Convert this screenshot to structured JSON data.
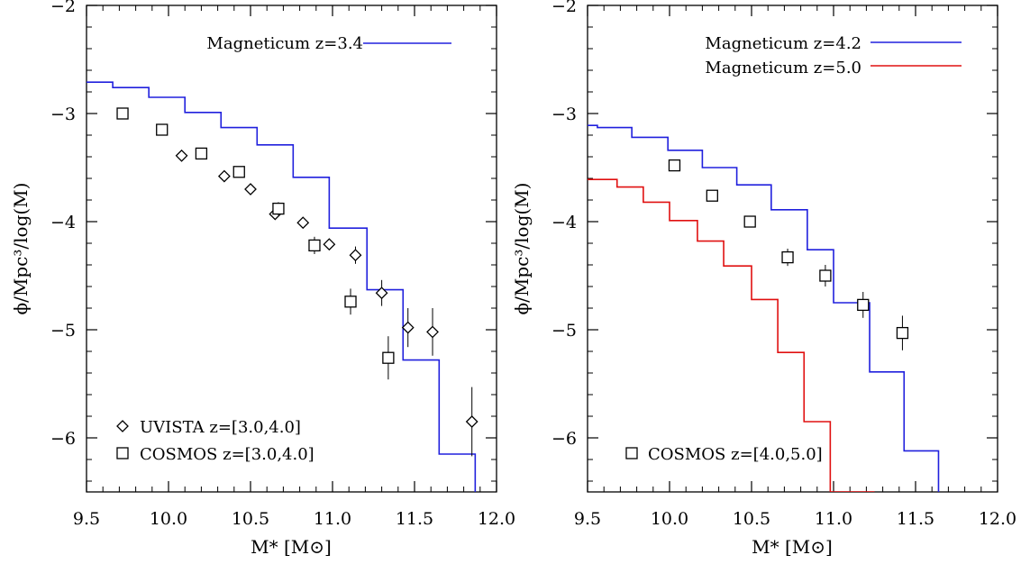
{
  "chart_data": [
    {
      "type": "line",
      "panel": "left",
      "xlabel": "M* [M⊙]",
      "ylabel": "ϕ/Mpc³/log(M)",
      "xlim": [
        9.5,
        12.0
      ],
      "ylim": [
        -6.5,
        -2.0
      ],
      "xticks": [
        "9.5",
        "10.0",
        "10.5",
        "11.0",
        "11.5",
        "12.0"
      ],
      "yticks": [
        "−2",
        "−3",
        "−4",
        "−5",
        "−6"
      ],
      "series": [
        {
          "name": "Magneticum z=3.4",
          "kind": "step",
          "color": "#2020dd",
          "x": [
            9.5,
            9.66,
            9.88,
            10.1,
            10.32,
            10.54,
            10.76,
            10.98,
            11.21,
            11.43,
            11.65,
            11.87
          ],
          "y": [
            -2.71,
            -2.76,
            -2.85,
            -2.99,
            -3.13,
            -3.29,
            -3.59,
            -4.06,
            -4.63,
            -5.28,
            -6.15,
            -6.5
          ]
        },
        {
          "name": "UVISTA z=[3.0,4.0]",
          "kind": "diamond",
          "color": "#000000",
          "x": [
            10.08,
            10.34,
            10.5,
            10.65,
            10.82,
            10.98,
            11.14,
            11.3,
            11.46,
            11.61,
            11.85
          ],
          "y": [
            -3.39,
            -3.58,
            -3.7,
            -3.93,
            -4.01,
            -4.21,
            -4.31,
            -4.66,
            -4.98,
            -5.02,
            -5.85
          ],
          "err": [
            0.02,
            0.02,
            0.02,
            0.03,
            0.05,
            0.05,
            0.08,
            0.12,
            0.18,
            0.22,
            0.32
          ]
        },
        {
          "name": "COSMOS z=[3.0,4.0]",
          "kind": "square",
          "color": "#000000",
          "x": [
            9.72,
            9.96,
            10.2,
            10.43,
            10.67,
            10.89,
            11.11,
            11.34
          ],
          "y": [
            -3.0,
            -3.15,
            -3.37,
            -3.54,
            -3.88,
            -4.22,
            -4.74,
            -5.26
          ],
          "err": [
            0.02,
            0.02,
            0.03,
            0.04,
            0.06,
            0.08,
            0.12,
            0.2
          ]
        }
      ]
    },
    {
      "type": "line",
      "panel": "right",
      "xlabel": "M* [M⊙]",
      "ylabel": "ϕ/Mpc³/log(M)",
      "xlim": [
        9.5,
        12.0
      ],
      "ylim": [
        -6.5,
        -2.0
      ],
      "xticks": [
        "9.5",
        "10.0",
        "10.5",
        "11.0",
        "11.5",
        "12.0"
      ],
      "yticks": [
        "−2",
        "−3",
        "−4",
        "−5",
        "−6"
      ],
      "series": [
        {
          "name": "Magneticum z=4.2",
          "kind": "step",
          "color": "#2020dd",
          "x": [
            9.5,
            9.56,
            9.77,
            9.99,
            10.2,
            10.41,
            10.62,
            10.84,
            11.0,
            11.22,
            11.43,
            11.64
          ],
          "y": [
            -3.11,
            -3.13,
            -3.22,
            -3.34,
            -3.5,
            -3.66,
            -3.89,
            -4.26,
            -4.75,
            -5.39,
            -6.12,
            -6.5
          ]
        },
        {
          "name": "Magneticum z=5.0",
          "kind": "step",
          "color": "#e01010",
          "x": [
            9.5,
            9.68,
            9.84,
            10.0,
            10.17,
            10.33,
            10.5,
            10.66,
            10.82,
            10.98,
            11.14,
            11.25
          ],
          "y": [
            -3.61,
            -3.68,
            -3.82,
            -3.99,
            -4.18,
            -4.41,
            -4.72,
            -5.21,
            -5.85,
            -6.5,
            -6.5,
            -6.5
          ]
        },
        {
          "name": "COSMOS z=[4.0,5.0]",
          "kind": "square",
          "color": "#000000",
          "x": [
            10.03,
            10.26,
            10.49,
            10.72,
            10.95,
            11.18,
            11.42
          ],
          "y": [
            -3.48,
            -3.76,
            -4.0,
            -4.33,
            -4.5,
            -4.77,
            -5.03
          ],
          "err": [
            0.03,
            0.04,
            0.05,
            0.08,
            0.1,
            0.12,
            0.16
          ]
        }
      ]
    }
  ]
}
